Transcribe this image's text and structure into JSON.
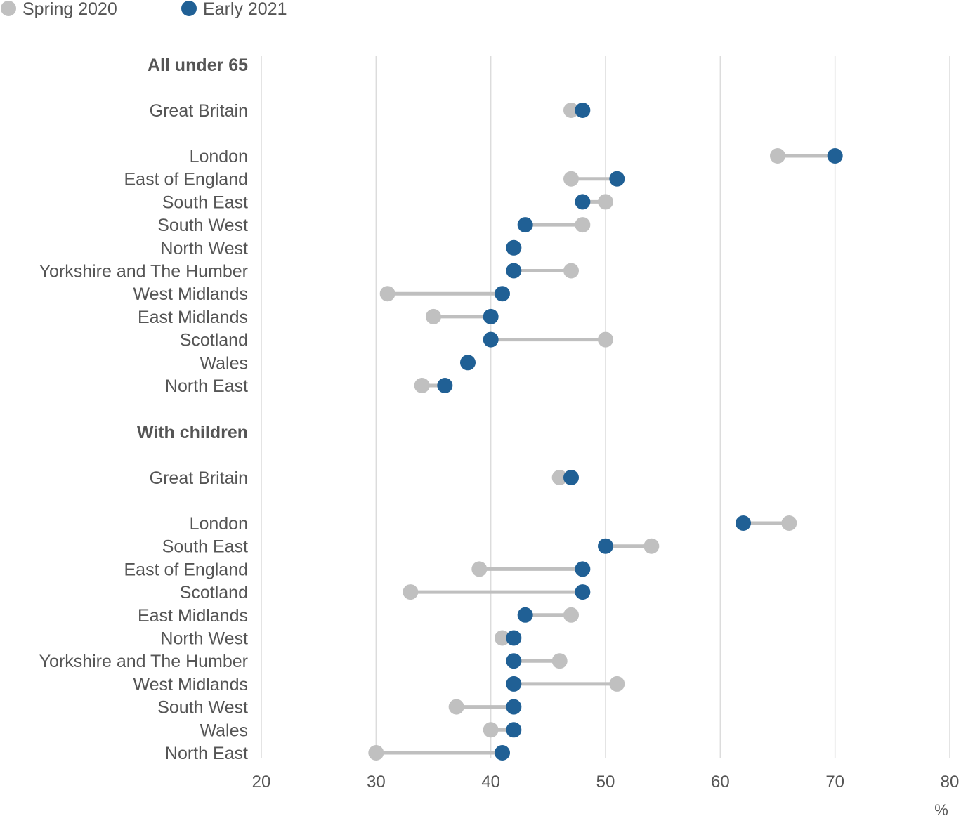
{
  "chart_data": {
    "type": "scatter",
    "subtype": "dumbbell",
    "title": "",
    "xlabel": "%",
    "ylabel": "",
    "xlim": [
      20,
      80
    ],
    "x_ticks": [
      20,
      30,
      40,
      50,
      60,
      70,
      80
    ],
    "grid": "vertical",
    "legend": {
      "placement": "top-left",
      "entries": [
        {
          "name": "Spring 2020",
          "color": "#c0c0c0"
        },
        {
          "name": "Early 2021",
          "color": "#206095"
        }
      ]
    },
    "groups": [
      {
        "label": "All under 65",
        "rows": [
          {
            "label": "Great Britain",
            "spring_2020": 47,
            "early_2021": 48
          },
          {
            "label": "London",
            "spring_2020": 65,
            "early_2021": 70
          },
          {
            "label": "East of England",
            "spring_2020": 47,
            "early_2021": 51
          },
          {
            "label": "South East",
            "spring_2020": 50,
            "early_2021": 48
          },
          {
            "label": "South West",
            "spring_2020": 48,
            "early_2021": 43
          },
          {
            "label": "North West",
            "spring_2020": 42,
            "early_2021": 42
          },
          {
            "label": "Yorkshire and The Humber",
            "spring_2020": 47,
            "early_2021": 42
          },
          {
            "label": "West Midlands",
            "spring_2020": 31,
            "early_2021": 41
          },
          {
            "label": "East Midlands",
            "spring_2020": 35,
            "early_2021": 40
          },
          {
            "label": "Scotland",
            "spring_2020": 50,
            "early_2021": 40
          },
          {
            "label": "Wales",
            "spring_2020": 38,
            "early_2021": 38
          },
          {
            "label": "North East",
            "spring_2020": 34,
            "early_2021": 36
          }
        ]
      },
      {
        "label": "With children",
        "rows": [
          {
            "label": "Great Britain",
            "spring_2020": 46,
            "early_2021": 47
          },
          {
            "label": "London",
            "spring_2020": 66,
            "early_2021": 62
          },
          {
            "label": "South East",
            "spring_2020": 54,
            "early_2021": 50
          },
          {
            "label": "East of England",
            "spring_2020": 39,
            "early_2021": 48
          },
          {
            "label": "Scotland",
            "spring_2020": 33,
            "early_2021": 48
          },
          {
            "label": "East Midlands",
            "spring_2020": 47,
            "early_2021": 43
          },
          {
            "label": "North West",
            "spring_2020": 41,
            "early_2021": 42
          },
          {
            "label": "Yorkshire and The Humber",
            "spring_2020": 46,
            "early_2021": 42
          },
          {
            "label": "West Midlands",
            "spring_2020": 51,
            "early_2021": 42
          },
          {
            "label": "South West",
            "spring_2020": 37,
            "early_2021": 42
          },
          {
            "label": "Wales",
            "spring_2020": 40,
            "early_2021": 42
          },
          {
            "label": "North East",
            "spring_2020": 30,
            "early_2021": 41
          }
        ]
      }
    ]
  }
}
